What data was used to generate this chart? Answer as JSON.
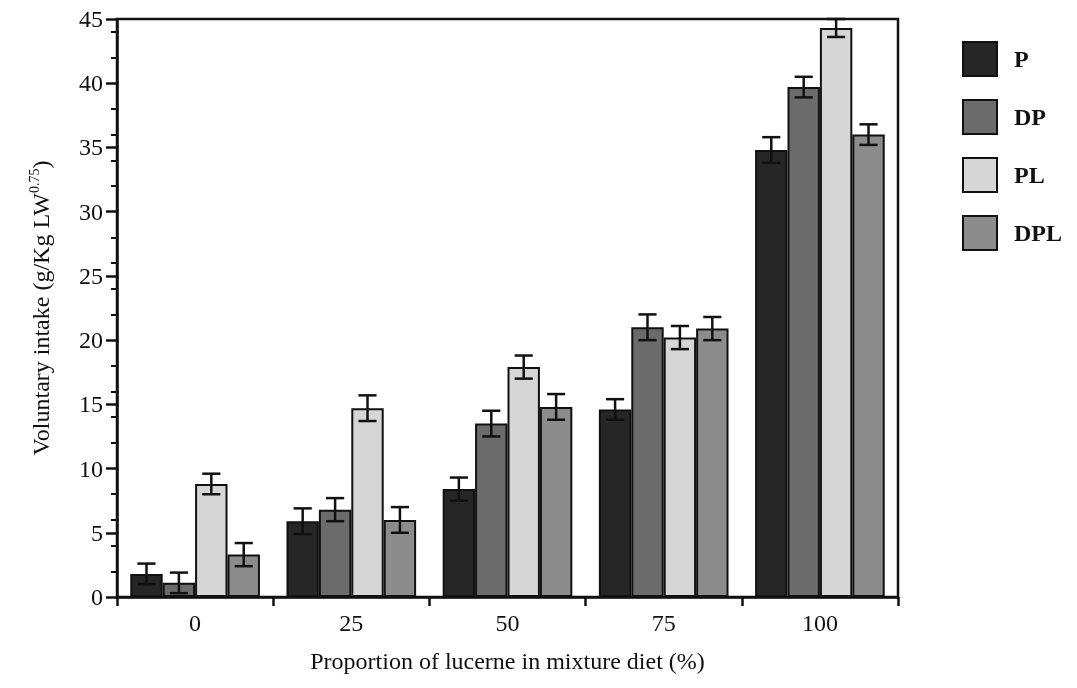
{
  "chart_data": {
    "type": "bar",
    "xlabel": "Proportion of lucerne in mixture diet (%)",
    "ylabel": "Voluntary intake (g/Kg LW$^{0.75}$)",
    "categories": [
      "0",
      "25",
      "50",
      "75",
      "100"
    ],
    "ylim": [
      0,
      45
    ],
    "yticks": [
      0,
      5,
      10,
      15,
      20,
      25,
      30,
      35,
      40,
      45
    ],
    "grid": false,
    "legend": "top right",
    "series": [
      {
        "name": "P",
        "color": "#262626",
        "values": [
          1.8,
          5.9,
          8.4,
          14.6,
          34.8
        ],
        "errors": [
          0.8,
          1.0,
          0.9,
          0.8,
          1.0
        ]
      },
      {
        "name": "DP",
        "color": "#6b6b6b",
        "values": [
          1.1,
          6.8,
          13.5,
          21.0,
          39.7
        ],
        "errors": [
          0.8,
          0.9,
          1.0,
          1.0,
          0.8
        ]
      },
      {
        "name": "PL",
        "color": "#d6d6d6",
        "values": [
          8.8,
          14.7,
          17.9,
          20.2,
          44.3
        ],
        "errors": [
          0.8,
          1.0,
          0.9,
          0.9,
          0.7
        ]
      },
      {
        "name": "DPL",
        "color": "#8c8c8c",
        "values": [
          3.3,
          6.0,
          14.8,
          20.9,
          36.0
        ],
        "errors": [
          0.9,
          1.0,
          1.0,
          0.9,
          0.8
        ]
      }
    ]
  }
}
